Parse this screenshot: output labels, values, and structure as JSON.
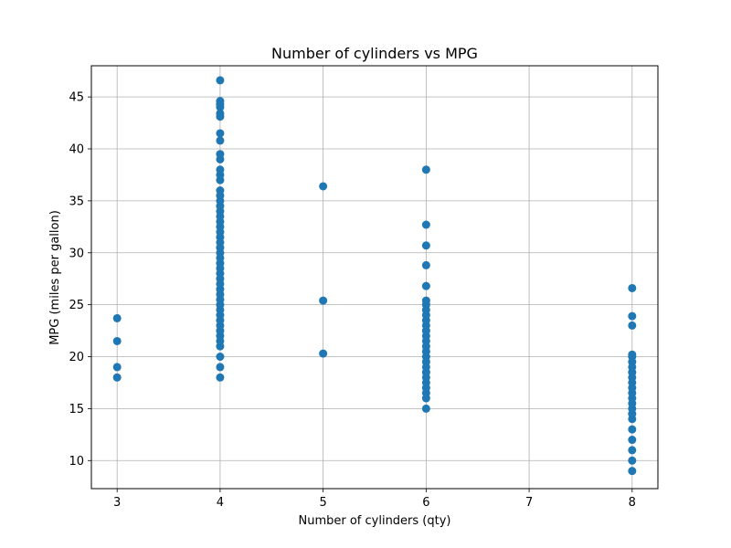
{
  "chart_data": {
    "type": "scatter",
    "title": "Number of cylinders vs MPG",
    "xlabel": "Number of cylinders (qty)",
    "ylabel": "MPG (miles per gallon)",
    "xlim": [
      2.75,
      8.25
    ],
    "ylim": [
      7.3,
      48.0
    ],
    "xticks": [
      3,
      4,
      5,
      6,
      7,
      8
    ],
    "yticks": [
      10,
      15,
      20,
      25,
      30,
      35,
      40,
      45
    ],
    "grid": true,
    "marker_color": "#1f77b4",
    "points": [
      {
        "x": 3,
        "y": 18.0
      },
      {
        "x": 3,
        "y": 19.0
      },
      {
        "x": 3,
        "y": 21.5
      },
      {
        "x": 3,
        "y": 23.7
      },
      {
        "x": 4,
        "y": 18.0
      },
      {
        "x": 4,
        "y": 19.0
      },
      {
        "x": 4,
        "y": 20.0
      },
      {
        "x": 4,
        "y": 21.0
      },
      {
        "x": 4,
        "y": 21.5
      },
      {
        "x": 4,
        "y": 22.0
      },
      {
        "x": 4,
        "y": 22.5
      },
      {
        "x": 4,
        "y": 23.0
      },
      {
        "x": 4,
        "y": 23.5
      },
      {
        "x": 4,
        "y": 24.0
      },
      {
        "x": 4,
        "y": 24.5
      },
      {
        "x": 4,
        "y": 25.0
      },
      {
        "x": 4,
        "y": 25.5
      },
      {
        "x": 4,
        "y": 26.0
      },
      {
        "x": 4,
        "y": 26.5
      },
      {
        "x": 4,
        "y": 27.0
      },
      {
        "x": 4,
        "y": 27.5
      },
      {
        "x": 4,
        "y": 28.0
      },
      {
        "x": 4,
        "y": 28.5
      },
      {
        "x": 4,
        "y": 29.0
      },
      {
        "x": 4,
        "y": 29.5
      },
      {
        "x": 4,
        "y": 30.0
      },
      {
        "x": 4,
        "y": 30.5
      },
      {
        "x": 4,
        "y": 31.0
      },
      {
        "x": 4,
        "y": 31.5
      },
      {
        "x": 4,
        "y": 32.0
      },
      {
        "x": 4,
        "y": 32.5
      },
      {
        "x": 4,
        "y": 33.0
      },
      {
        "x": 4,
        "y": 33.5
      },
      {
        "x": 4,
        "y": 34.0
      },
      {
        "x": 4,
        "y": 34.5
      },
      {
        "x": 4,
        "y": 35.0
      },
      {
        "x": 4,
        "y": 35.5
      },
      {
        "x": 4,
        "y": 36.0
      },
      {
        "x": 4,
        "y": 37.0
      },
      {
        "x": 4,
        "y": 37.5
      },
      {
        "x": 4,
        "y": 38.0
      },
      {
        "x": 4,
        "y": 39.0
      },
      {
        "x": 4,
        "y": 39.5
      },
      {
        "x": 4,
        "y": 40.8
      },
      {
        "x": 4,
        "y": 41.5
      },
      {
        "x": 4,
        "y": 43.1
      },
      {
        "x": 4,
        "y": 43.4
      },
      {
        "x": 4,
        "y": 44.0
      },
      {
        "x": 4,
        "y": 44.3
      },
      {
        "x": 4,
        "y": 44.6
      },
      {
        "x": 4,
        "y": 46.6
      },
      {
        "x": 5,
        "y": 20.3
      },
      {
        "x": 5,
        "y": 25.4
      },
      {
        "x": 5,
        "y": 36.4
      },
      {
        "x": 6,
        "y": 15.0
      },
      {
        "x": 6,
        "y": 16.0
      },
      {
        "x": 6,
        "y": 16.5
      },
      {
        "x": 6,
        "y": 17.0
      },
      {
        "x": 6,
        "y": 17.5
      },
      {
        "x": 6,
        "y": 18.0
      },
      {
        "x": 6,
        "y": 18.5
      },
      {
        "x": 6,
        "y": 19.0
      },
      {
        "x": 6,
        "y": 19.5
      },
      {
        "x": 6,
        "y": 20.0
      },
      {
        "x": 6,
        "y": 20.5
      },
      {
        "x": 6,
        "y": 21.0
      },
      {
        "x": 6,
        "y": 21.5
      },
      {
        "x": 6,
        "y": 22.0
      },
      {
        "x": 6,
        "y": 22.5
      },
      {
        "x": 6,
        "y": 23.0
      },
      {
        "x": 6,
        "y": 23.5
      },
      {
        "x": 6,
        "y": 24.0
      },
      {
        "x": 6,
        "y": 24.5
      },
      {
        "x": 6,
        "y": 25.0
      },
      {
        "x": 6,
        "y": 25.4
      },
      {
        "x": 6,
        "y": 26.8
      },
      {
        "x": 6,
        "y": 28.8
      },
      {
        "x": 6,
        "y": 30.7
      },
      {
        "x": 6,
        "y": 32.7
      },
      {
        "x": 6,
        "y": 38.0
      },
      {
        "x": 8,
        "y": 9.0
      },
      {
        "x": 8,
        "y": 10.0
      },
      {
        "x": 8,
        "y": 11.0
      },
      {
        "x": 8,
        "y": 12.0
      },
      {
        "x": 8,
        "y": 13.0
      },
      {
        "x": 8,
        "y": 14.0
      },
      {
        "x": 8,
        "y": 14.5
      },
      {
        "x": 8,
        "y": 15.0
      },
      {
        "x": 8,
        "y": 15.5
      },
      {
        "x": 8,
        "y": 16.0
      },
      {
        "x": 8,
        "y": 16.5
      },
      {
        "x": 8,
        "y": 17.0
      },
      {
        "x": 8,
        "y": 17.5
      },
      {
        "x": 8,
        "y": 18.0
      },
      {
        "x": 8,
        "y": 18.5
      },
      {
        "x": 8,
        "y": 19.0
      },
      {
        "x": 8,
        "y": 19.5
      },
      {
        "x": 8,
        "y": 20.0
      },
      {
        "x": 8,
        "y": 20.2
      },
      {
        "x": 8,
        "y": 23.0
      },
      {
        "x": 8,
        "y": 23.9
      },
      {
        "x": 8,
        "y": 26.6
      }
    ]
  }
}
